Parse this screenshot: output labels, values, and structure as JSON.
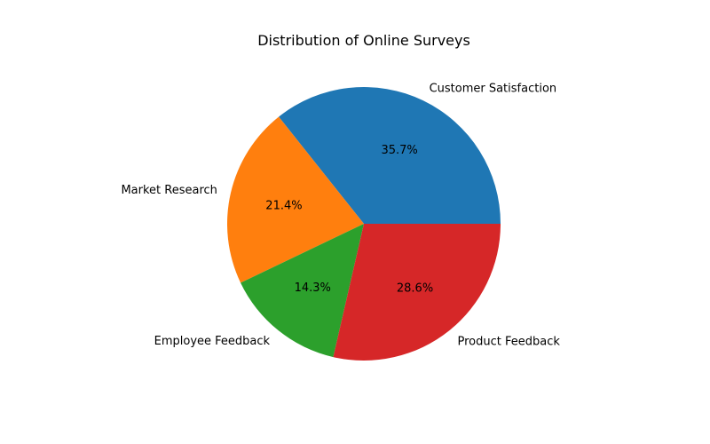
{
  "chart_data": {
    "type": "pie",
    "title": "Distribution of Online Surveys",
    "categories": [
      "Customer Satisfaction",
      "Market Research",
      "Employee Feedback",
      "Product Feedback"
    ],
    "values": [
      35.7,
      21.4,
      14.3,
      28.6
    ],
    "percent_labels": [
      "35.7%",
      "21.4%",
      "14.3%",
      "28.6%"
    ],
    "colors": [
      "#1f77b4",
      "#ff7f0e",
      "#2ca02c",
      "#d62728"
    ],
    "start_angle": 0,
    "direction": "counterclockwise",
    "legend": "none"
  }
}
